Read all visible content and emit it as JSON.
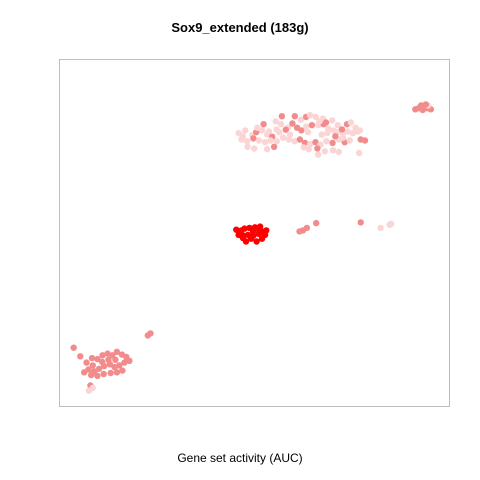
{
  "chart_data": {
    "type": "scatter",
    "title": "Sox9_extended (183g)",
    "xlabel": "Gene set activity (AUC)",
    "ylabel": "",
    "axes_visible": false,
    "grid": false,
    "legend": "none",
    "xlim": [
      0,
      100
    ],
    "ylim": [
      0,
      100
    ],
    "colors": {
      "high": "#ff0000",
      "mid": "#f28c8c",
      "low": "#fbd5d5",
      "frame": "#bdbdbd"
    },
    "points": [
      {
        "x": 48.2,
        "y": 49.6,
        "c": "#ff0000"
      },
      {
        "x": 49.5,
        "y": 50.6,
        "c": "#ff0000"
      },
      {
        "x": 50.7,
        "y": 51.4,
        "c": "#ff0000"
      },
      {
        "x": 51.8,
        "y": 50.6,
        "c": "#ff0000"
      },
      {
        "x": 52.6,
        "y": 49.6,
        "c": "#ff0000"
      },
      {
        "x": 51.8,
        "y": 48.5,
        "c": "#ff0000"
      },
      {
        "x": 50.4,
        "y": 47.7,
        "c": "#ff0000"
      },
      {
        "x": 49.0,
        "y": 48.5,
        "c": "#ff0000"
      },
      {
        "x": 47.7,
        "y": 47.7,
        "c": "#ff0000"
      },
      {
        "x": 46.9,
        "y": 48.7,
        "c": "#ff0000"
      },
      {
        "x": 45.8,
        "y": 49.6,
        "c": "#ff0000"
      },
      {
        "x": 46.5,
        "y": 50.9,
        "c": "#ff0000"
      },
      {
        "x": 47.3,
        "y": 51.4,
        "c": "#ff0000"
      },
      {
        "x": 48.6,
        "y": 51.6,
        "c": "#ff0000"
      },
      {
        "x": 50.0,
        "y": 51.8,
        "c": "#ff0000"
      },
      {
        "x": 51.3,
        "y": 52.0,
        "c": "#ff0000"
      },
      {
        "x": 52.9,
        "y": 50.9,
        "c": "#ff0000"
      },
      {
        "x": 45.2,
        "y": 51.1,
        "c": "#ff0000"
      },
      {
        "x": 47.0,
        "y": 49.4,
        "c": "#ff0000"
      },
      {
        "x": 49.6,
        "y": 49.4,
        "c": "#ff0000"
      },
      {
        "x": 51.0,
        "y": 49.9,
        "c": "#ff0000"
      },
      {
        "x": 61.4,
        "y": 50.6,
        "c": "#f28c8c"
      },
      {
        "x": 62.3,
        "y": 50.9,
        "c": "#f28c8c"
      },
      {
        "x": 63.3,
        "y": 51.6,
        "c": "#f28c8c"
      },
      {
        "x": 65.7,
        "y": 53.0,
        "c": "#f28c8c"
      },
      {
        "x": 77.1,
        "y": 53.2,
        "c": "#f28c8c"
      },
      {
        "x": 82.2,
        "y": 51.6,
        "c": "#fbd5d5"
      },
      {
        "x": 84.5,
        "y": 52.5,
        "c": "#fbd5d5"
      },
      {
        "x": 84.9,
        "y": 52.8,
        "c": "#fbd5d5"
      },
      {
        "x": 91.1,
        "y": 85.8,
        "c": "#f28c8c"
      },
      {
        "x": 92.0,
        "y": 86.1,
        "c": "#f28c8c"
      },
      {
        "x": 93.0,
        "y": 85.6,
        "c": "#f28c8c"
      },
      {
        "x": 94.2,
        "y": 86.1,
        "c": "#f28c8c"
      },
      {
        "x": 95.1,
        "y": 85.8,
        "c": "#f28c8c"
      },
      {
        "x": 92.6,
        "y": 86.9,
        "c": "#f28c8c"
      },
      {
        "x": 94.4,
        "y": 86.9,
        "c": "#fbd5d5"
      },
      {
        "x": 93.8,
        "y": 87.2,
        "c": "#f28c8c"
      },
      {
        "x": 45.8,
        "y": 78.9,
        "c": "#fbd5d5"
      },
      {
        "x": 47.5,
        "y": 79.7,
        "c": "#fbd5d5"
      },
      {
        "x": 49.3,
        "y": 78.3,
        "c": "#fbd5d5"
      },
      {
        "x": 50.3,
        "y": 79.2,
        "c": "#f28c8c"
      },
      {
        "x": 51.8,
        "y": 79.7,
        "c": "#fbd5d5"
      },
      {
        "x": 53.6,
        "y": 79.4,
        "c": "#fbd5d5"
      },
      {
        "x": 55.5,
        "y": 80.0,
        "c": "#fbd5d5"
      },
      {
        "x": 56.7,
        "y": 81.5,
        "c": "#fbd5d5"
      },
      {
        "x": 58.4,
        "y": 80.5,
        "c": "#fbd5d5"
      },
      {
        "x": 59.6,
        "y": 81.7,
        "c": "#f28c8c"
      },
      {
        "x": 60.8,
        "y": 80.5,
        "c": "#f28c8c"
      },
      {
        "x": 61.9,
        "y": 79.7,
        "c": "#f28c8c"
      },
      {
        "x": 63.1,
        "y": 80.8,
        "c": "#fbd5d5"
      },
      {
        "x": 64.6,
        "y": 81.2,
        "c": "#f28c8c"
      },
      {
        "x": 66.2,
        "y": 81.2,
        "c": "#fbd5d5"
      },
      {
        "x": 67.6,
        "y": 81.5,
        "c": "#f28c8c"
      },
      {
        "x": 68.8,
        "y": 80.2,
        "c": "#fbd5d5"
      },
      {
        "x": 70.1,
        "y": 79.7,
        "c": "#fbd5d5"
      },
      {
        "x": 71.2,
        "y": 79.2,
        "c": "#fbd5d5"
      },
      {
        "x": 72.5,
        "y": 78.9,
        "c": "#fbd5d5"
      },
      {
        "x": 73.8,
        "y": 79.4,
        "c": "#fbd5d5"
      },
      {
        "x": 75.1,
        "y": 78.9,
        "c": "#fbd5d5"
      },
      {
        "x": 76.3,
        "y": 79.4,
        "c": "#fbd5d5"
      },
      {
        "x": 55.3,
        "y": 82.3,
        "c": "#fbd5d5"
      },
      {
        "x": 56.9,
        "y": 83.8,
        "c": "#f28c8c"
      },
      {
        "x": 60.2,
        "y": 83.8,
        "c": "#f28c8c"
      },
      {
        "x": 61.8,
        "y": 82.8,
        "c": "#fbd5d5"
      },
      {
        "x": 63.1,
        "y": 83.6,
        "c": "#f28c8c"
      },
      {
        "x": 64.1,
        "y": 84.1,
        "c": "#fbd5d5"
      },
      {
        "x": 65.6,
        "y": 83.6,
        "c": "#fbd5d5"
      },
      {
        "x": 66.5,
        "y": 82.3,
        "c": "#fbd5d5"
      },
      {
        "x": 67.4,
        "y": 83.1,
        "c": "#fbd5d5"
      },
      {
        "x": 68.2,
        "y": 82.0,
        "c": "#f28c8c"
      },
      {
        "x": 69.8,
        "y": 82.6,
        "c": "#fbd5d5"
      },
      {
        "x": 71.2,
        "y": 81.2,
        "c": "#fbd5d5"
      },
      {
        "x": 72.3,
        "y": 80.0,
        "c": "#f28c8c"
      },
      {
        "x": 73.6,
        "y": 81.5,
        "c": "#f28c8c"
      },
      {
        "x": 74.6,
        "y": 82.0,
        "c": "#fbd5d5"
      },
      {
        "x": 75.8,
        "y": 80.5,
        "c": "#fbd5d5"
      },
      {
        "x": 76.9,
        "y": 79.7,
        "c": "#fbd5d5"
      },
      {
        "x": 50.6,
        "y": 80.5,
        "c": "#fbd5d5"
      },
      {
        "x": 52.2,
        "y": 81.5,
        "c": "#f28c8c"
      },
      {
        "x": 53.1,
        "y": 78.5,
        "c": "#fbd5d5"
      },
      {
        "x": 54.4,
        "y": 77.9,
        "c": "#f28c8c"
      },
      {
        "x": 46.5,
        "y": 77.1,
        "c": "#fbd5d5"
      },
      {
        "x": 48.0,
        "y": 76.6,
        "c": "#fbd5d5"
      },
      {
        "x": 49.6,
        "y": 77.4,
        "c": "#f28c8c"
      },
      {
        "x": 51.0,
        "y": 76.8,
        "c": "#fbd5d5"
      },
      {
        "x": 52.6,
        "y": 76.3,
        "c": "#fbd5d5"
      },
      {
        "x": 54.0,
        "y": 76.8,
        "c": "#fbd5d5"
      },
      {
        "x": 55.6,
        "y": 76.6,
        "c": "#fbd5d5"
      },
      {
        "x": 57.2,
        "y": 77.6,
        "c": "#fbd5d5"
      },
      {
        "x": 58.7,
        "y": 77.1,
        "c": "#fbd5d5"
      },
      {
        "x": 60.2,
        "y": 76.6,
        "c": "#fbd5d5"
      },
      {
        "x": 61.5,
        "y": 77.1,
        "c": "#f28c8c"
      },
      {
        "x": 62.8,
        "y": 76.1,
        "c": "#f28c8c"
      },
      {
        "x": 64.2,
        "y": 75.8,
        "c": "#fbd5d5"
      },
      {
        "x": 65.5,
        "y": 76.3,
        "c": "#f28c8c"
      },
      {
        "x": 66.8,
        "y": 75.6,
        "c": "#fbd5d5"
      },
      {
        "x": 68.3,
        "y": 76.6,
        "c": "#fbd5d5"
      },
      {
        "x": 69.9,
        "y": 76.1,
        "c": "#f28c8c"
      },
      {
        "x": 71.5,
        "y": 77.1,
        "c": "#fbd5d5"
      },
      {
        "x": 73.0,
        "y": 76.3,
        "c": "#f28c8c"
      },
      {
        "x": 74.3,
        "y": 76.8,
        "c": "#fbd5d5"
      },
      {
        "x": 46.9,
        "y": 78.0,
        "c": "#fbd5d5"
      },
      {
        "x": 56.2,
        "y": 79.2,
        "c": "#fbd5d5"
      },
      {
        "x": 57.9,
        "y": 79.9,
        "c": "#f28c8c"
      },
      {
        "x": 59.0,
        "y": 78.5,
        "c": "#fbd5d5"
      },
      {
        "x": 63.6,
        "y": 79.2,
        "c": "#fbd5d5"
      },
      {
        "x": 67.1,
        "y": 78.5,
        "c": "#fbd5d5"
      },
      {
        "x": 68.6,
        "y": 79.0,
        "c": "#fbd5d5"
      },
      {
        "x": 70.6,
        "y": 78.0,
        "c": "#f28c8c"
      },
      {
        "x": 72.6,
        "y": 77.6,
        "c": "#fbd5d5"
      },
      {
        "x": 62.5,
        "y": 74.8,
        "c": "#fbd5d5"
      },
      {
        "x": 63.8,
        "y": 74.3,
        "c": "#fbd5d5"
      },
      {
        "x": 66.0,
        "y": 74.5,
        "c": "#f28c8c"
      },
      {
        "x": 67.9,
        "y": 73.7,
        "c": "#fbd5d5"
      },
      {
        "x": 70.0,
        "y": 74.0,
        "c": "#fbd5d5"
      },
      {
        "x": 71.5,
        "y": 73.5,
        "c": "#fbd5d5"
      },
      {
        "x": 54.9,
        "y": 75.0,
        "c": "#f28c8c"
      },
      {
        "x": 53.1,
        "y": 74.3,
        "c": "#fbd5d5"
      },
      {
        "x": 48.1,
        "y": 75.0,
        "c": "#fbd5d5"
      },
      {
        "x": 49.8,
        "y": 74.5,
        "c": "#fbd5d5"
      },
      {
        "x": 77.1,
        "y": 77.1,
        "c": "#f28c8c"
      },
      {
        "x": 78.2,
        "y": 76.8,
        "c": "#f28c8c"
      },
      {
        "x": 76.7,
        "y": 73.2,
        "c": "#fbd5d5"
      },
      {
        "x": 66.2,
        "y": 72.7,
        "c": "#fbd5d5"
      },
      {
        "x": 23.2,
        "y": 21.2,
        "c": "#f28c8c"
      },
      {
        "x": 22.5,
        "y": 20.6,
        "c": "#f28c8c"
      },
      {
        "x": 3.5,
        "y": 17.1,
        "c": "#f28c8c"
      },
      {
        "x": 5.2,
        "y": 14.6,
        "c": "#f28c8c"
      },
      {
        "x": 6.8,
        "y": 12.8,
        "c": "#f28c8c"
      },
      {
        "x": 8.2,
        "y": 14.1,
        "c": "#f28c8c"
      },
      {
        "x": 9.6,
        "y": 13.8,
        "c": "#f28c8c"
      },
      {
        "x": 10.9,
        "y": 14.9,
        "c": "#f28c8c"
      },
      {
        "x": 12.2,
        "y": 15.4,
        "c": "#f28c8c"
      },
      {
        "x": 13.4,
        "y": 14.9,
        "c": "#f28c8c"
      },
      {
        "x": 14.6,
        "y": 15.9,
        "c": "#f28c8c"
      },
      {
        "x": 15.9,
        "y": 15.1,
        "c": "#f28c8c"
      },
      {
        "x": 17.0,
        "y": 14.4,
        "c": "#f28c8c"
      },
      {
        "x": 17.8,
        "y": 13.3,
        "c": "#f28c8c"
      },
      {
        "x": 16.5,
        "y": 12.8,
        "c": "#f28c8c"
      },
      {
        "x": 15.2,
        "y": 12.0,
        "c": "#f28c8c"
      },
      {
        "x": 14.0,
        "y": 11.5,
        "c": "#f28c8c"
      },
      {
        "x": 12.8,
        "y": 12.3,
        "c": "#f28c8c"
      },
      {
        "x": 11.3,
        "y": 11.8,
        "c": "#f28c8c"
      },
      {
        "x": 10.0,
        "y": 11.0,
        "c": "#f28c8c"
      },
      {
        "x": 8.8,
        "y": 10.3,
        "c": "#f28c8c"
      },
      {
        "x": 7.3,
        "y": 10.8,
        "c": "#f28c8c"
      },
      {
        "x": 6.2,
        "y": 10.0,
        "c": "#f28c8c"
      },
      {
        "x": 8.0,
        "y": 9.2,
        "c": "#f28c8c"
      },
      {
        "x": 9.6,
        "y": 9.0,
        "c": "#f28c8c"
      },
      {
        "x": 11.2,
        "y": 9.5,
        "c": "#f28c8c"
      },
      {
        "x": 13.0,
        "y": 9.8,
        "c": "#f28c8c"
      },
      {
        "x": 14.6,
        "y": 10.0,
        "c": "#f28c8c"
      },
      {
        "x": 16.0,
        "y": 10.5,
        "c": "#f28c8c"
      },
      {
        "x": 10.8,
        "y": 13.0,
        "c": "#f28c8c"
      },
      {
        "x": 12.4,
        "y": 13.6,
        "c": "#f28c8c"
      },
      {
        "x": 14.2,
        "y": 13.6,
        "c": "#f28c8c"
      },
      {
        "x": 8.4,
        "y": 12.0,
        "c": "#f28c8c"
      },
      {
        "x": 7.8,
        "y": 6.2,
        "c": "#f28c8c"
      },
      {
        "x": 8.4,
        "y": 5.5,
        "c": "#fbd5d5"
      },
      {
        "x": 7.4,
        "y": 4.7,
        "c": "#fbd5d5"
      }
    ]
  }
}
